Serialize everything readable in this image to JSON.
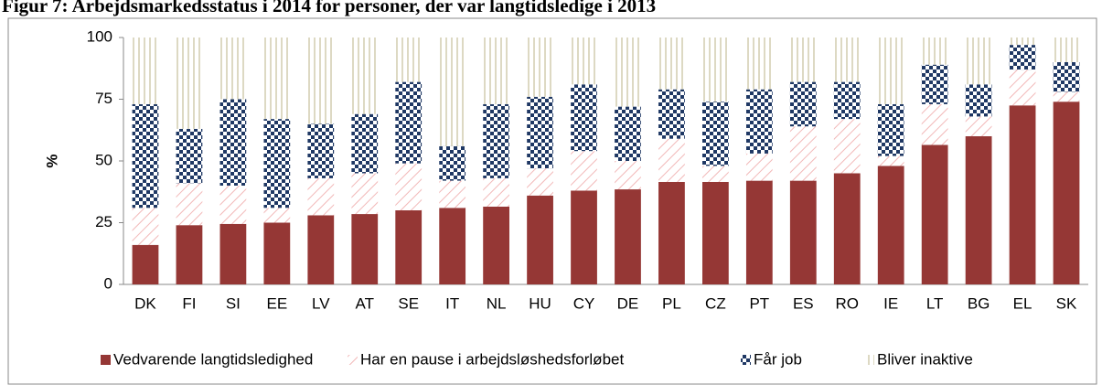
{
  "chart_data": {
    "type": "stacked_bar",
    "title": "Figur 7: Arbejdsmarkedsstatus i 2014 for personer, der var langtidsledige i 2013",
    "y_label": "%",
    "categories": [
      "DK",
      "FI",
      "SI",
      "EE",
      "LV",
      "AT",
      "SE",
      "IT",
      "NL",
      "HU",
      "CY",
      "DE",
      "PL",
      "CZ",
      "PT",
      "ES",
      "RO",
      "IE",
      "LT",
      "BG",
      "EL",
      "SK"
    ],
    "series": [
      {
        "name": "Vedvarende langtidsledighed",
        "color": "#953735",
        "pattern": "solid",
        "values": [
          16,
          24,
          24.5,
          25,
          28,
          28.5,
          30,
          31,
          31.5,
          36,
          38,
          38.5,
          41.5,
          41.5,
          42,
          42,
          45,
          48,
          56.5,
          60,
          72.5,
          74
        ]
      },
      {
        "name": "Har en pause i arbejdsløshedsforløbet",
        "color": "#f2b8b8",
        "pattern": "hatch",
        "values": [
          15,
          17,
          15.5,
          6,
          15,
          16.5,
          19,
          11,
          11.5,
          11,
          16,
          11.5,
          17.5,
          6.5,
          11,
          22,
          22,
          4,
          16.5,
          8,
          14.5,
          4
        ]
      },
      {
        "name": "Får job",
        "color": "#1f3864",
        "pattern": "checker",
        "values": [
          42,
          22,
          35,
          36,
          22,
          24,
          33,
          14,
          30,
          29,
          27,
          22,
          20,
          26,
          26,
          18,
          15,
          21,
          16,
          13,
          10,
          12
        ]
      },
      {
        "name": "Bliver inaktive",
        "color": "#ddd9c3",
        "pattern": "vlines",
        "values": [
          27,
          37,
          25,
          33,
          35,
          31,
          18,
          44,
          27,
          24,
          19,
          28,
          21,
          26,
          21,
          18,
          18,
          27,
          11,
          19,
          3,
          10
        ]
      }
    ],
    "ylim": [
      0,
      100
    ],
    "yticks": [
      0,
      25,
      50,
      75,
      100
    ],
    "grid": false,
    "legend": "bottom"
  }
}
